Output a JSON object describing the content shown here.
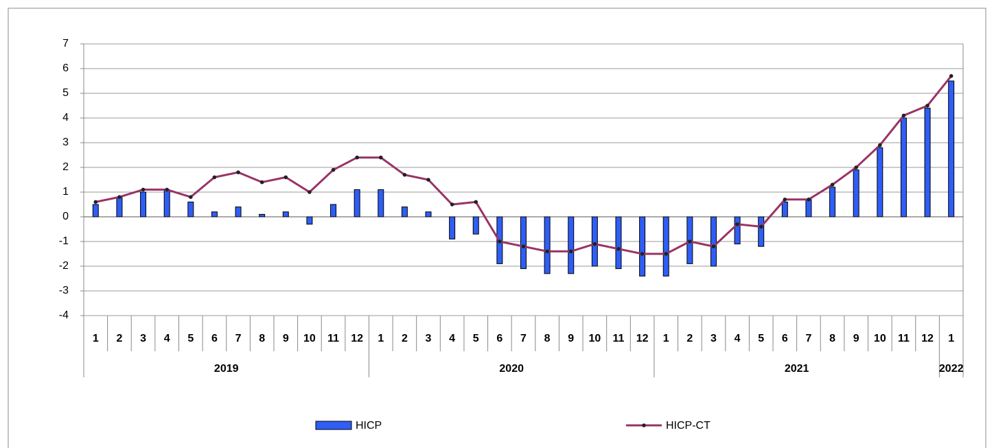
{
  "chart_data": {
    "type": "bar-line",
    "categories": [
      "1",
      "2",
      "3",
      "4",
      "5",
      "6",
      "7",
      "8",
      "9",
      "10",
      "11",
      "12",
      "1",
      "2",
      "3",
      "4",
      "5",
      "6",
      "7",
      "8",
      "9",
      "10",
      "11",
      "12",
      "1",
      "2",
      "3",
      "4",
      "5",
      "6",
      "7",
      "8",
      "9",
      "10",
      "11",
      "12",
      "1"
    ],
    "year_labels": [
      "2019",
      null,
      null,
      null,
      null,
      null,
      null,
      null,
      null,
      null,
      null,
      null,
      "2020",
      null,
      null,
      null,
      null,
      null,
      null,
      null,
      null,
      null,
      null,
      null,
      "2021",
      null,
      null,
      null,
      null,
      null,
      null,
      null,
      null,
      null,
      null,
      null,
      "2022"
    ],
    "series": [
      {
        "name": "HICP",
        "type": "bar",
        "color": "#2f5ef5",
        "values": [
          0.5,
          0.8,
          1.0,
          1.1,
          0.6,
          0.2,
          0.4,
          0.1,
          0.2,
          -0.3,
          0.5,
          1.1,
          1.1,
          0.4,
          0.2,
          -0.9,
          -0.7,
          -1.9,
          -2.1,
          -2.3,
          -2.3,
          -2.0,
          -2.1,
          -2.4,
          -2.4,
          -1.9,
          -2.0,
          -1.1,
          -1.2,
          0.6,
          0.7,
          1.2,
          1.9,
          2.8,
          4.0,
          4.4,
          5.5
        ]
      },
      {
        "name": "HICP-CT",
        "type": "line",
        "color": "#993366",
        "values": [
          0.6,
          0.8,
          1.1,
          1.1,
          0.8,
          1.6,
          1.8,
          1.4,
          1.6,
          1.0,
          1.9,
          2.4,
          2.4,
          1.7,
          1.5,
          0.5,
          0.6,
          -1.0,
          -1.2,
          -1.4,
          -1.4,
          -1.1,
          -1.3,
          -1.5,
          -1.5,
          -1.0,
          -1.2,
          -0.3,
          -0.4,
          0.7,
          0.7,
          1.3,
          2.0,
          2.9,
          4.1,
          4.5,
          5.7
        ]
      }
    ],
    "ylim": [
      -4,
      7
    ],
    "yticks": [
      -4,
      -3,
      -2,
      -1,
      0,
      1,
      2,
      3,
      4,
      5,
      6,
      7
    ],
    "grid": true
  }
}
